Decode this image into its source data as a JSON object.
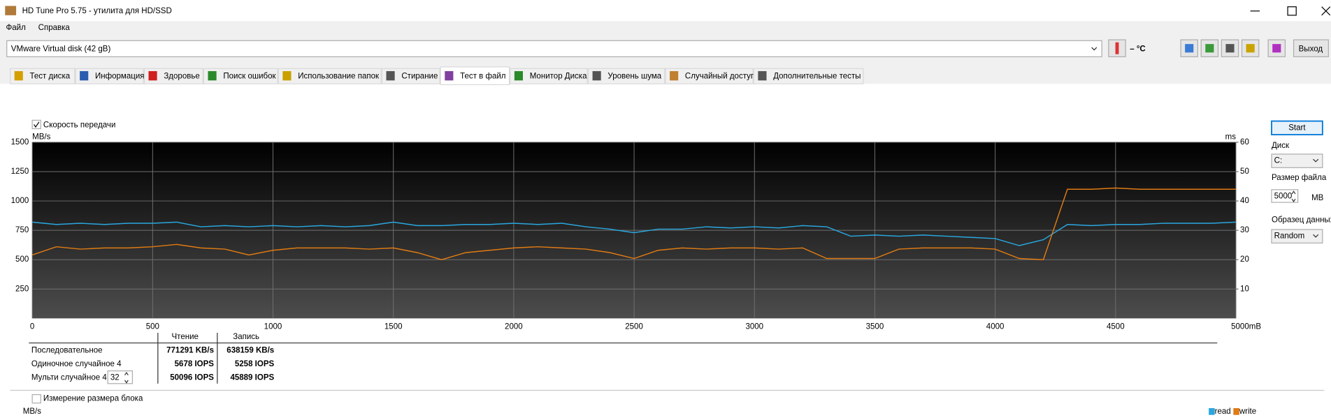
{
  "window": {
    "title": "HD Tune Pro 5.75 - утилита для HD/SSD"
  },
  "menu": [
    "Файл",
    "Справка"
  ],
  "toolbar": {
    "drive": "VMware  Virtual disk (42 gB)",
    "temperature": "– °C",
    "exit": "Выход"
  },
  "tabs": [
    "Тест диска",
    "Информация",
    "Здоровье",
    "Поиск ошибок",
    "Использование папок",
    "Стирание",
    "Тест в файл",
    "Монитор Диска",
    "Уровень шума",
    "Случайный доступ",
    "Дополнительные  тесты"
  ],
  "active_tab": 6,
  "chart_data": {
    "type": "line",
    "checkbox_label": "Скорость передачи",
    "y_label": "MB/s",
    "y2_label": "ms",
    "x": [
      0,
      100,
      200,
      300,
      400,
      500,
      600,
      700,
      800,
      900,
      1000,
      1100,
      1200,
      1300,
      1400,
      1500,
      1600,
      1700,
      1800,
      1900,
      2000,
      2100,
      2200,
      2300,
      2400,
      2500,
      2600,
      2700,
      2800,
      2900,
      3000,
      3100,
      3200,
      3300,
      3400,
      3500,
      3600,
      3700,
      3800,
      3900,
      4000,
      4100,
      4200,
      4300,
      4400,
      4500,
      4600,
      4700,
      4800,
      4900,
      5000
    ],
    "series": [
      {
        "name": "read",
        "color": "#29a8e0",
        "values": [
          820,
          800,
          810,
          800,
          810,
          810,
          820,
          780,
          790,
          780,
          790,
          780,
          790,
          780,
          790,
          820,
          790,
          790,
          800,
          800,
          810,
          800,
          810,
          780,
          760,
          730,
          760,
          760,
          780,
          770,
          780,
          770,
          790,
          780,
          700,
          710,
          700,
          710,
          700,
          690,
          680,
          620,
          670,
          800,
          790,
          800,
          800,
          810,
          810,
          810,
          820
        ]
      },
      {
        "name": "write",
        "color": "#e07b12",
        "values": [
          540,
          610,
          590,
          600,
          600,
          610,
          630,
          600,
          590,
          540,
          580,
          600,
          600,
          600,
          590,
          600,
          560,
          500,
          560,
          580,
          600,
          610,
          600,
          590,
          560,
          510,
          580,
          600,
          590,
          600,
          600,
          590,
          600,
          510,
          510,
          510,
          590,
          600,
          600,
          600,
          590,
          510,
          500,
          1100,
          1100,
          1110,
          1100,
          1100,
          1100,
          1100,
          1100
        ]
      }
    ],
    "xlim": [
      0,
      5000
    ],
    "xticks": [
      0,
      500,
      1000,
      1500,
      2000,
      2500,
      3000,
      3500,
      4000,
      4500,
      {
        "value": 5000,
        "label": "5000mB"
      }
    ],
    "ylim": [
      0,
      1500
    ],
    "yticks": [
      250,
      500,
      750,
      1000,
      1250,
      1500
    ],
    "y2lim": [
      0,
      60
    ],
    "y2ticks": [
      10,
      20,
      30,
      40,
      50,
      60
    ],
    "grid": true
  },
  "results": {
    "headers": [
      "Чтение",
      "Запись"
    ],
    "rows": [
      [
        "Последовательное",
        "771291 KB/s",
        "638159 KB/s"
      ],
      [
        "Одиночное случайное 4",
        "5678 IOPS",
        "5258 IOPS"
      ],
      [
        "Мульти случайное 4",
        "50096 IOPS",
        "45889 IOPS"
      ]
    ],
    "queue_depth": "32"
  },
  "side": {
    "start": "Start",
    "disk_label": "Диск",
    "disk": "C:",
    "file_size_label": "Размер файла",
    "file_size": "5000",
    "file_size_unit": "MB",
    "pattern_label": "Образец данных",
    "pattern": "Random"
  },
  "block": {
    "checkbox_label": "Измерение размера блока",
    "y_label": "MB/s"
  }
}
